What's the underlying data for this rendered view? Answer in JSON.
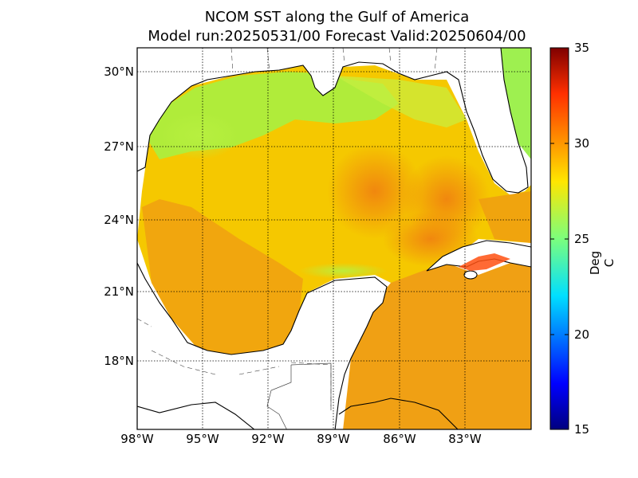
{
  "title": {
    "line1": "NCOM SST along the Gulf of America",
    "line2": "Model run:20250531/00 Forecast Valid:20250604/00"
  },
  "map": {
    "lon_range": [
      -98,
      -80
    ],
    "lat_range": [
      15.3,
      31
    ],
    "lat_ticks": [
      {
        "value": 30,
        "label": "30°N"
      },
      {
        "value": 27,
        "label": "27°N"
      },
      {
        "value": 24,
        "label": "24°N"
      },
      {
        "value": 21,
        "label": "21°N"
      },
      {
        "value": 18,
        "label": "18°N"
      }
    ],
    "lon_ticks": [
      {
        "value": -98,
        "label": "98°W"
      },
      {
        "value": -95,
        "label": "95°W"
      },
      {
        "value": -92,
        "label": "92°W"
      },
      {
        "value": -89,
        "label": "89°W"
      },
      {
        "value": -86,
        "label": "86°W"
      },
      {
        "value": -83,
        "label": "83°W"
      }
    ],
    "grid": true,
    "land_color": "#ffffff",
    "coast_color": "#000000"
  },
  "colorbar": {
    "label": "Deg C",
    "min": 15,
    "max": 35,
    "ticks": [
      "35",
      "30",
      "25",
      "20",
      "15"
    ],
    "colormap": "jet"
  }
}
